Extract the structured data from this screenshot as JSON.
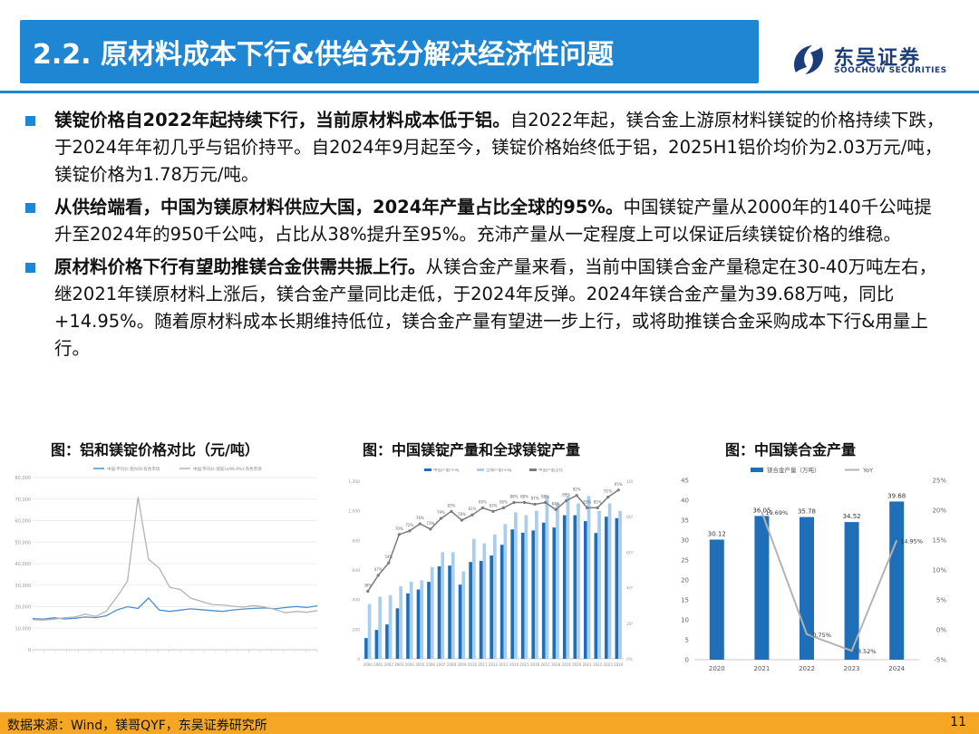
{
  "header": {
    "title": "2.2. 原材料成本下行&供给充分解决经济性问题",
    "logo_cn": "东吴证券",
    "logo_en": "SOOCHOW SECURITIES"
  },
  "bullets": [
    {
      "bold": "镁锭价格自2022年起持续下行，当前原材料成本低于铝。",
      "text": "自2022年起，镁合金上游原材料镁锭的价格持续下跌，于2024年年初几乎与铝价持平。自2024年9月起至今，镁锭价格始终低于铝，2025H1铝价均价为2.03万元/吨，镁锭价格为1.78万元/吨。"
    },
    {
      "bold": "从供给端看，中国为镁原材料供应大国，2024年产量占比全球的95%。",
      "text": "中国镁锭产量从2000年的140千公吨提升至2024年的950千公吨，占比从38%提升至95%。充沛产量从一定程度上可以保证后续镁锭价格的维稳。"
    },
    {
      "bold": "原材料价格下行有望助推镁合金供需共振上行。",
      "text": "从镁合金产量来看，当前中国镁合金产量稳定在30-40万吨左右，继2021年镁原材料上涨后，镁合金产量同比走低，于2024年反弹。2024年镁合金产量为39.68万吨，同比+14.95%。随着原材料成本长期维持低位，镁合金产量有望进一步上行，或将助推镁合金采购成本下行&用量上行。"
    }
  ],
  "chart_titles": {
    "left": "图：铝和镁锭价格对比（元/吨）",
    "middle": "图：中国镁锭产量和全球镁锭产量",
    "right": "图：中国镁合金产量"
  },
  "chart_data": [
    {
      "type": "line",
      "title": "图：铝和镁锭价格对比（元/吨）",
      "ylim": [
        0,
        80000
      ],
      "yticks": [
        "80,000",
        "70,000",
        "60,000",
        "50,000",
        "40,000",
        "30,000",
        "20,000",
        "10,000",
        "0"
      ],
      "series": [
        {
          "name": "中国:平均价:铝A00:有色市场",
          "color": "#4a8fd0",
          "values": [
            14500,
            14200,
            14800,
            14300,
            14600,
            15200,
            14900,
            15800,
            18500,
            20000,
            19200,
            24000,
            18500,
            17800,
            18400,
            19000,
            18600,
            18200,
            17800,
            18500,
            18900,
            19200,
            19400,
            19000,
            19600,
            20100,
            19600,
            20400
          ]
        },
        {
          "name": "中国:平均价:镁锭(≥99.9%):有色市场",
          "color": "#b3b3b3",
          "values": [
            14000,
            13800,
            14200,
            14800,
            15200,
            16500,
            15500,
            18000,
            24500,
            32000,
            71000,
            42000,
            38000,
            29000,
            28000,
            24000,
            22500,
            21000,
            20800,
            20200,
            19800,
            20500,
            19800,
            18700,
            17200,
            17800,
            17400,
            18200
          ]
        }
      ]
    },
    {
      "type": "bar",
      "title": "图：中国镁锭产量和全球镁锭产量",
      "categories": [
        "2000",
        "2001",
        "2002",
        "2003",
        "2004",
        "2005",
        "2006",
        "2007",
        "2008",
        "2009",
        "2010",
        "2011",
        "2012",
        "2013",
        "2014",
        "2015",
        "2016",
        "2017",
        "2018",
        "2019",
        "2020",
        "2021",
        "2022",
        "2023",
        "2024"
      ],
      "ylim": [
        0,
        1200
      ],
      "y2lim": [
        0,
        100
      ],
      "series": [
        {
          "name": "中国产量/千吨",
          "color": "#1f6fb8",
          "values": [
            140,
            195,
            232,
            341,
            442,
            468,
            520,
            625,
            630,
            501,
            654,
            661,
            698,
            770,
            874,
            852,
            867,
            920,
            887,
            970,
            970,
            930,
            850,
            960,
            950
          ]
        },
        {
          "name": "全球产量/千吨",
          "color": "#a9cdec",
          "values": [
            370,
            420,
            430,
            490,
            520,
            530,
            620,
            720,
            720,
            590,
            810,
            780,
            840,
            910,
            990,
            970,
            1000,
            1100,
            1050,
            1100,
            1050,
            1100,
            1000,
            1050,
            1000
          ]
        },
        {
          "name": "中国产量占比",
          "color": "#7a7a7a",
          "values": [
            38,
            47,
            54,
            70,
            72,
            76,
            73,
            79,
            83,
            78,
            81,
            85,
            83,
            85,
            88,
            88,
            87,
            88,
            84,
            89,
            92,
            85,
            85,
            91,
            95
          ]
        }
      ],
      "pct_labels": [
        "38%",
        "47%",
        "54%",
        "70%",
        "72%",
        "76%",
        "73%",
        "79%",
        "83%",
        "78%",
        "81%",
        "85%",
        "83%",
        "85%",
        "88%",
        "88%",
        "87%",
        "88%",
        "84%",
        "89%",
        "92%",
        "85%",
        "85%",
        "91%",
        "95%"
      ]
    },
    {
      "type": "bar",
      "title": "图：中国镁合金产量",
      "categories": [
        "2020",
        "2021",
        "2022",
        "2023",
        "2024"
      ],
      "ylim": [
        0,
        45
      ],
      "y2lim": [
        -5,
        25
      ],
      "yticks": [
        "45",
        "40",
        "35",
        "30",
        "25",
        "20",
        "15",
        "10",
        "5",
        "0"
      ],
      "y2ticks": [
        "25%",
        "20%",
        "15%",
        "10%",
        "5%",
        "0%",
        "-5%"
      ],
      "series": [
        {
          "name": "镁合金产量（万吨）",
          "color": "#1f6fb8",
          "values": [
            30.12,
            36.05,
            35.78,
            34.52,
            39.68
          ]
        },
        {
          "name": "YoY",
          "color": "#b3b3b3",
          "values": [
            null,
            19.69,
            -0.75,
            -3.52,
            14.95
          ]
        }
      ],
      "bar_labels": [
        "30.12",
        "36.05",
        "35.78",
        "34.52",
        "39.68"
      ],
      "yoy_labels": [
        "",
        "19.69%",
        "-0.75%",
        "-3.52%",
        "14.95%"
      ]
    }
  ],
  "footer": {
    "source": "数据来源：Wind，镁哥QYF，东吴证券研究所",
    "page": "11"
  },
  "colors": {
    "accent": "#1f86d3",
    "footer": "#f5a623",
    "logo": "#1d3c7a"
  }
}
